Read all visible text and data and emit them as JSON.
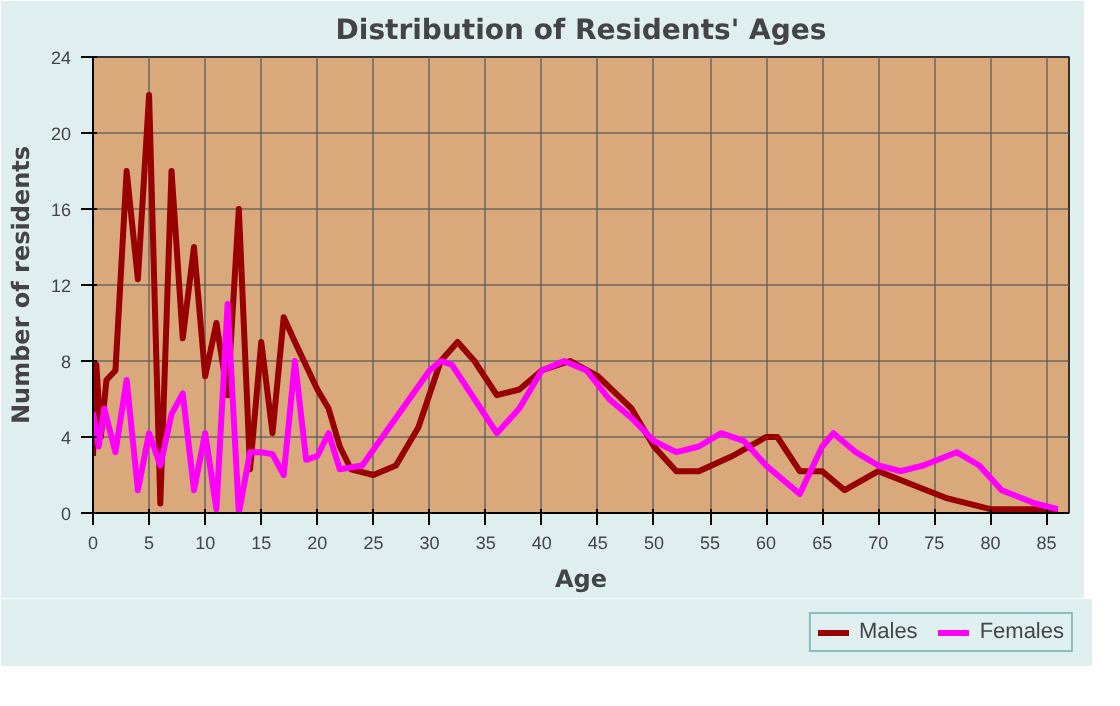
{
  "chart_data": {
    "type": "line",
    "title": "Distribution of Residents' Ages",
    "xlabel": "Age",
    "ylabel": "Number of residents",
    "xlim": [
      0,
      87
    ],
    "xticks": [
      0,
      5,
      10,
      15,
      20,
      25,
      30,
      35,
      40,
      45,
      50,
      55,
      60,
      65,
      70,
      75,
      80,
      85
    ],
    "ylim": [
      0,
      24
    ],
    "yticks": [
      0,
      4,
      8,
      12,
      16,
      20,
      24
    ],
    "grid": true,
    "legend": "bottom right",
    "series": [
      {
        "name": "Males",
        "color": "#990000",
        "x": [
          0,
          0.3,
          0.7,
          1.2,
          2,
          3,
          4,
          5,
          6,
          7,
          8,
          9,
          10,
          11,
          12,
          13,
          14,
          15,
          16,
          17,
          18,
          20,
          21,
          22,
          23,
          25,
          27,
          29,
          31,
          32.5,
          34,
          36,
          38,
          40,
          42.5,
          45,
          48,
          50,
          52,
          54,
          57,
          60,
          61,
          63,
          65,
          67,
          70,
          73,
          76,
          80,
          83,
          86
        ],
        "values": [
          3,
          7.8,
          4,
          7,
          7.5,
          18,
          12.3,
          22,
          0.5,
          18,
          9.2,
          14,
          7.2,
          10,
          6.2,
          16,
          2.3,
          9,
          4.2,
          10.3,
          9,
          6.5,
          5.5,
          3.5,
          2.3,
          2,
          2.5,
          4.5,
          8,
          9,
          8,
          6.2,
          6.5,
          7.5,
          8,
          7.2,
          5.5,
          3.5,
          2.2,
          2.2,
          3,
          4,
          4,
          2.2,
          2.2,
          1.2,
          2.2,
          1.5,
          0.8,
          0.2,
          0.2,
          0.2
        ]
      },
      {
        "name": "Females",
        "color": "#ff00ff",
        "x": [
          0,
          0.5,
          1,
          2,
          3,
          4,
          5,
          6,
          7,
          8,
          9,
          10,
          11,
          12,
          13,
          14,
          15,
          16,
          17,
          18,
          19,
          20,
          21,
          22,
          24,
          27,
          30,
          31,
          32,
          34,
          36,
          38,
          40,
          42,
          44,
          46,
          48,
          50,
          52,
          54,
          56,
          58,
          60,
          63,
          65,
          66,
          68,
          70,
          72,
          74,
          77,
          79,
          81,
          84,
          86
        ],
        "values": [
          5.3,
          3.5,
          5.5,
          3.2,
          7,
          1.2,
          4.2,
          2.5,
          5.2,
          6.3,
          1.2,
          4.2,
          0.2,
          11,
          0,
          3.2,
          3.2,
          3.1,
          2,
          8,
          2.8,
          3,
          4.2,
          2.3,
          2.5,
          5,
          7.5,
          8,
          7.8,
          6,
          4.2,
          5.5,
          7.5,
          8,
          7.5,
          6,
          5,
          3.8,
          3.2,
          3.5,
          4.2,
          3.8,
          2.5,
          1,
          3.5,
          4.2,
          3.2,
          2.5,
          2.2,
          2.5,
          3.2,
          2.5,
          1.2,
          0.5,
          0.2
        ]
      }
    ]
  }
}
